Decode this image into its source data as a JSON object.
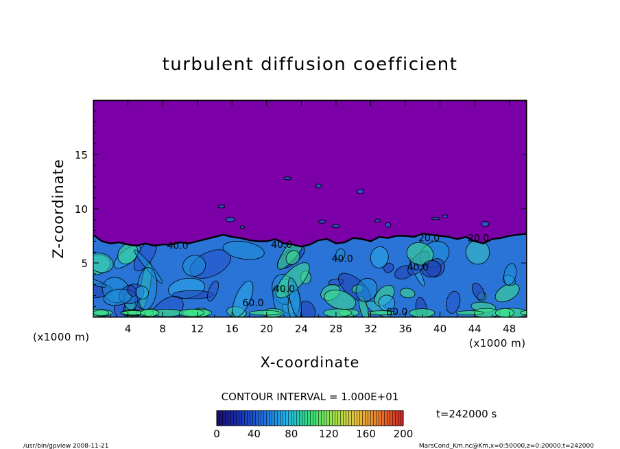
{
  "chart_data": {
    "type": "heatmap",
    "title": "turbulent diffusion coefficient",
    "xlabel": "X-coordinate",
    "ylabel": "Z-coordinate",
    "x_unit": "(x1000 m)",
    "x_unit_right": "(x1000 m)",
    "xlim": [
      0,
      50
    ],
    "ylim": [
      0,
      20
    ],
    "x_ticks": [
      "4",
      "8",
      "12",
      "16",
      "20",
      "24",
      "28",
      "32",
      "36",
      "40",
      "44",
      "48"
    ],
    "x_tick_values": [
      4,
      8,
      12,
      16,
      20,
      24,
      28,
      32,
      36,
      40,
      44,
      48
    ],
    "y_ticks": [
      "5",
      "10",
      "15"
    ],
    "y_tick_values": [
      5,
      10,
      15
    ],
    "contour_interval_label": "CONTOUR INTERVAL = 1.000E+01",
    "time_label": "t=242000 s",
    "colorbar": {
      "ticks": [
        "0",
        "40",
        "80",
        "120",
        "160",
        "200"
      ],
      "tick_values": [
        0,
        40,
        80,
        120,
        160,
        200
      ],
      "range": [
        0,
        200
      ]
    },
    "contour_labels": [
      "40.0",
      "40.0",
      "40.0",
      "60.0",
      "40.0",
      "20.0",
      "40.0",
      "20.0",
      "60.0"
    ],
    "boundary_layer_top": [
      [
        0,
        7.6
      ],
      [
        1,
        7.0
      ],
      [
        2,
        6.8
      ],
      [
        3,
        6.9
      ],
      [
        4,
        6.7
      ],
      [
        5,
        6.6
      ],
      [
        6,
        6.8
      ],
      [
        7,
        6.6
      ],
      [
        8,
        6.7
      ],
      [
        9,
        6.7
      ],
      [
        10,
        6.9
      ],
      [
        11,
        6.8
      ],
      [
        12,
        7.0
      ],
      [
        13,
        7.2
      ],
      [
        14,
        7.4
      ],
      [
        15,
        7.6
      ],
      [
        16,
        7.4
      ],
      [
        17,
        7.3
      ],
      [
        18,
        7.1
      ],
      [
        19,
        7.0
      ],
      [
        20,
        7.0
      ],
      [
        21,
        7.2
      ],
      [
        22,
        6.8
      ],
      [
        23,
        6.7
      ],
      [
        24,
        6.5
      ],
      [
        25,
        6.7
      ],
      [
        26,
        7.1
      ],
      [
        27,
        7.2
      ],
      [
        28,
        6.8
      ],
      [
        29,
        6.9
      ],
      [
        30,
        7.3
      ],
      [
        31,
        7.2
      ],
      [
        32,
        7.0
      ],
      [
        33,
        7.4
      ],
      [
        34,
        7.3
      ],
      [
        35,
        7.5
      ],
      [
        36,
        7.5
      ],
      [
        37,
        7.4
      ],
      [
        38,
        7.7
      ],
      [
        39,
        7.6
      ],
      [
        40,
        7.5
      ],
      [
        41,
        7.4
      ],
      [
        42,
        7.2
      ],
      [
        43,
        7.4
      ],
      [
        44,
        7.0
      ],
      [
        45,
        6.8
      ],
      [
        46,
        7.2
      ],
      [
        47,
        7.3
      ],
      [
        48,
        7.5
      ],
      [
        49,
        7.6
      ],
      [
        50,
        7.7
      ]
    ],
    "background_value": 0,
    "grid": false,
    "legend": "bottom colorbar"
  },
  "footer": {
    "left": "/usr/bin/gpview   2008-11-21",
    "right": "MarsCond_Km.nc@Km,x=0:50000,z=0:20000,t=242000"
  },
  "colors": {
    "background_field": "#7b00a8",
    "low": "#1f3fb0",
    "mid": "#2aa9e8",
    "high": "#3de28a"
  }
}
